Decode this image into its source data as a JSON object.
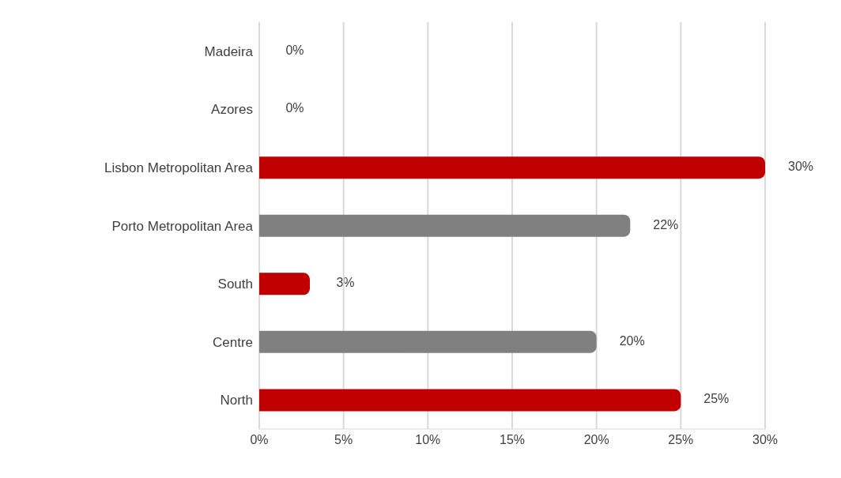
{
  "chart_data": {
    "type": "bar",
    "orientation": "horizontal",
    "categories": [
      "Madeira",
      "Azores",
      "Lisbon Metropolitan Area",
      "Porto Metropolitan Area",
      "South",
      "Centre",
      "North"
    ],
    "values": [
      0,
      0,
      30,
      22,
      3,
      20,
      25
    ],
    "colors": [
      "#8b4513",
      "#595959",
      "#c00000",
      "#808080",
      "#c00000",
      "#808080",
      "#c00000"
    ],
    "value_labels": [
      "0%",
      "0%",
      "30%",
      "22%",
      "3%",
      "20%",
      "25%"
    ],
    "xlim": [
      0,
      30
    ],
    "xticks": [
      {
        "value": 0,
        "label": "0%"
      },
      {
        "value": 5,
        "label": "5%"
      },
      {
        "value": 10,
        "label": "10%"
      },
      {
        "value": 15,
        "label": "15%"
      },
      {
        "value": 20,
        "label": "20%"
      },
      {
        "value": 25,
        "label": "25%"
      },
      {
        "value": 30,
        "label": "30%"
      }
    ],
    "grid": "x",
    "legend": false
  }
}
